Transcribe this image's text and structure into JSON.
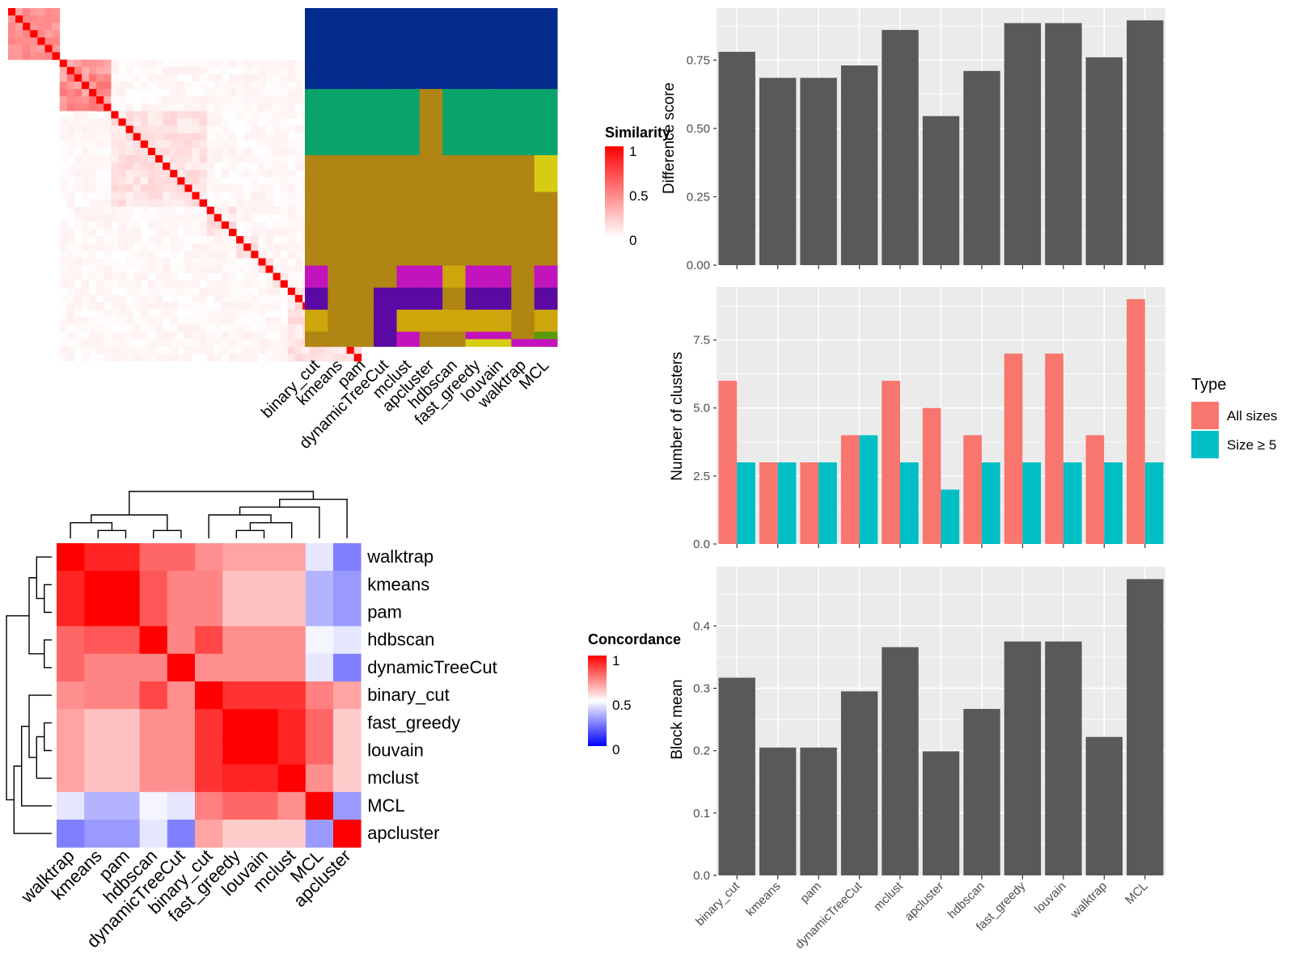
{
  "colors": {
    "heat_low": "#ffffff",
    "heat_high": "#ff0000",
    "concord_low": "#0000ff",
    "concord_mid": "#ffffff",
    "concord_high": "#ff0000",
    "bar_grey": "#595959",
    "panel_bg": "#ebebeb",
    "grid_white": "#ffffff",
    "all_sizes": "#f8766d",
    "size_ge5": "#00bfc4",
    "class_colors": [
      "#032b8e",
      "#0aa36a",
      "#b08514",
      "#c214bc",
      "#5a0aa2",
      "#cca60a",
      "#d6cc14",
      "#5a9a0a"
    ]
  },
  "chart_data": [
    {
      "id": "similarity_heatmap",
      "type": "heatmap",
      "legend_title": "Similarity",
      "legend_ticks": [
        "1",
        "0.5",
        "0"
      ],
      "n": 48,
      "blocks": [
        [
          0,
          7
        ],
        [
          7,
          14
        ],
        [
          14,
          27
        ],
        [
          27,
          31
        ],
        [
          31,
          34
        ],
        [
          34,
          36
        ],
        [
          36,
          38
        ],
        [
          38,
          48
        ]
      ]
    },
    {
      "id": "class_assignment",
      "type": "heatmap",
      "columns": [
        "binary_cut",
        "kmeans",
        "pam",
        "dynamicTreeCut",
        "mclust",
        "apcluster",
        "hdbscan",
        "fast_greedy",
        "louvain",
        "walktrap",
        "MCL"
      ],
      "row_groups": [
        {
          "rows": 11,
          "cols": [
            0,
            0,
            0,
            0,
            0,
            0,
            0,
            0,
            0,
            0,
            0
          ]
        },
        {
          "rows": 9,
          "cols": [
            1,
            1,
            1,
            1,
            1,
            2,
            1,
            1,
            1,
            1,
            1
          ]
        },
        {
          "rows": 5,
          "cols": [
            2,
            2,
            2,
            2,
            2,
            2,
            2,
            2,
            2,
            2,
            6
          ]
        },
        {
          "rows": 10,
          "cols": [
            2,
            2,
            2,
            2,
            2,
            2,
            2,
            2,
            2,
            2,
            2
          ]
        },
        {
          "rows": 3,
          "cols": [
            3,
            2,
            2,
            2,
            3,
            3,
            5,
            3,
            3,
            2,
            3
          ]
        },
        {
          "rows": 3,
          "cols": [
            4,
            2,
            2,
            4,
            4,
            4,
            2,
            4,
            4,
            2,
            4
          ]
        },
        {
          "rows": 3,
          "cols": [
            5,
            2,
            2,
            4,
            5,
            5,
            5,
            5,
            5,
            2,
            5
          ]
        },
        {
          "rows": 1,
          "cols": [
            2,
            2,
            2,
            4,
            3,
            2,
            2,
            3,
            3,
            2,
            7
          ]
        },
        {
          "rows": 1,
          "cols": [
            2,
            2,
            2,
            4,
            3,
            2,
            2,
            6,
            6,
            3,
            3
          ]
        }
      ]
    },
    {
      "id": "concordance_heatmap",
      "type": "heatmap",
      "legend_title": "Concordance",
      "legend_ticks": [
        "1",
        "0.5",
        "0"
      ],
      "labels": [
        "walktrap",
        "kmeans",
        "pam",
        "hdbscan",
        "dynamicTreeCut",
        "binary_cut",
        "fast_greedy",
        "louvain",
        "mclust",
        "MCL",
        "apcluster"
      ],
      "values": [
        [
          1.0,
          0.93,
          0.93,
          0.8,
          0.8,
          0.72,
          0.68,
          0.68,
          0.68,
          0.45,
          0.25
        ],
        [
          0.93,
          1.0,
          1.0,
          0.83,
          0.74,
          0.74,
          0.62,
          0.62,
          0.62,
          0.35,
          0.3
        ],
        [
          0.93,
          1.0,
          1.0,
          0.83,
          0.74,
          0.74,
          0.62,
          0.62,
          0.62,
          0.35,
          0.3
        ],
        [
          0.8,
          0.83,
          0.83,
          1.0,
          0.74,
          0.86,
          0.72,
          0.72,
          0.72,
          0.48,
          0.45
        ],
        [
          0.8,
          0.74,
          0.74,
          0.74,
          1.0,
          0.72,
          0.72,
          0.72,
          0.72,
          0.45,
          0.25
        ],
        [
          0.72,
          0.74,
          0.74,
          0.86,
          0.72,
          1.0,
          0.9,
          0.9,
          0.9,
          0.75,
          0.68
        ],
        [
          0.68,
          0.62,
          0.62,
          0.72,
          0.72,
          0.9,
          1.0,
          1.0,
          0.93,
          0.8,
          0.6
        ],
        [
          0.68,
          0.62,
          0.62,
          0.72,
          0.72,
          0.9,
          1.0,
          1.0,
          0.93,
          0.8,
          0.6
        ],
        [
          0.68,
          0.62,
          0.62,
          0.72,
          0.72,
          0.9,
          0.93,
          0.93,
          1.0,
          0.72,
          0.6
        ],
        [
          0.45,
          0.35,
          0.35,
          0.48,
          0.45,
          0.75,
          0.8,
          0.8,
          0.72,
          1.0,
          0.3
        ],
        [
          0.25,
          0.3,
          0.3,
          0.45,
          0.25,
          0.68,
          0.6,
          0.6,
          0.6,
          0.3,
          1.0
        ]
      ]
    },
    {
      "id": "difference_score",
      "type": "bar",
      "categories": [
        "binary_cut",
        "kmeans",
        "pam",
        "dynamicTreeCut",
        "mclust",
        "apcluster",
        "hdbscan",
        "fast_greedy",
        "louvain",
        "walktrap",
        "MCL"
      ],
      "values": [
        0.78,
        0.685,
        0.685,
        0.73,
        0.86,
        0.545,
        0.71,
        0.885,
        0.885,
        0.76,
        0.895
      ],
      "xlabel": "",
      "ylabel": "Difference score",
      "ylim": [
        0,
        0.94
      ],
      "yticks": [
        0,
        0.25,
        0.5,
        0.75
      ],
      "ytick_labels": [
        "0.00",
        "0.25",
        "0.50",
        "0.75"
      ],
      "grid": true
    },
    {
      "id": "number_of_clusters",
      "type": "bar",
      "categories": [
        "binary_cut",
        "kmeans",
        "pam",
        "dynamicTreeCut",
        "mclust",
        "apcluster",
        "hdbscan",
        "fast_greedy",
        "louvain",
        "walktrap",
        "MCL"
      ],
      "series": [
        {
          "name": "All sizes",
          "values": [
            6,
            3,
            3,
            4,
            6,
            5,
            4,
            7,
            7,
            4,
            9
          ]
        },
        {
          "name": "Size ≥ 5",
          "values": [
            3,
            3,
            3,
            4,
            3,
            2,
            3,
            3,
            3,
            3,
            3
          ]
        }
      ],
      "legend_title": "Type",
      "legend_position": "right",
      "xlabel": "",
      "ylabel": "Number of clusters",
      "ylim": [
        0,
        9.45
      ],
      "yticks": [
        0,
        2.5,
        5,
        7.5
      ],
      "ytick_labels": [
        "0.0",
        "2.5",
        "5.0",
        "7.5"
      ],
      "grid": true
    },
    {
      "id": "block_mean",
      "type": "bar",
      "categories": [
        "binary_cut",
        "kmeans",
        "pam",
        "dynamicTreeCut",
        "mclust",
        "apcluster",
        "hdbscan",
        "fast_greedy",
        "louvain",
        "walktrap",
        "MCL"
      ],
      "values": [
        0.317,
        0.205,
        0.205,
        0.295,
        0.366,
        0.199,
        0.267,
        0.375,
        0.375,
        0.222,
        0.475
      ],
      "xlabel": "",
      "ylabel": "Block mean",
      "ylim": [
        0,
        0.495
      ],
      "yticks": [
        0,
        0.1,
        0.2,
        0.3,
        0.4
      ],
      "ytick_labels": [
        "0.0",
        "0.1",
        "0.2",
        "0.3",
        "0.4"
      ],
      "grid": true
    }
  ]
}
